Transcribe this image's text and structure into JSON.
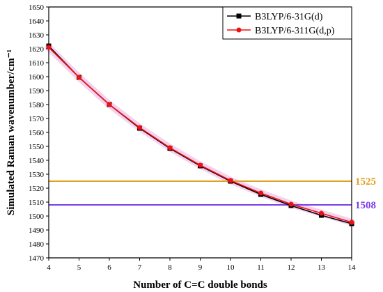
{
  "chart_data": {
    "type": "line",
    "xlabel": "Number of C=C double bonds",
    "ylabel": "Simulated Raman wavenumber/cm⁻¹",
    "xlim": [
      4,
      14
    ],
    "ylim": [
      1470,
      1650
    ],
    "x_ticks": [
      "4",
      "5",
      "6",
      "7",
      "8",
      "9",
      "10",
      "11",
      "12",
      "13",
      "14"
    ],
    "y_ticks": [
      "1470",
      "1480",
      "1490",
      "1500",
      "1510",
      "1520",
      "1530",
      "1540",
      "1550",
      "1560",
      "1570",
      "1580",
      "1590",
      "1600",
      "1610",
      "1620",
      "1630",
      "1640",
      "1650"
    ],
    "x": [
      4,
      5,
      6,
      7,
      8,
      9,
      10,
      11,
      12,
      13,
      14
    ],
    "series": [
      {
        "name": "B3LYP/6-31G(d)",
        "color": "#000000",
        "marker": "square",
        "values": [
          1622,
          1599.5,
          1580,
          1563,
          1548.5,
          1536,
          1525,
          1515.5,
          1507.5,
          1500.5,
          1494.5
        ]
      },
      {
        "name": "B3LYP/6-311G(d,p)",
        "color": "#ee1111",
        "marker": "circle",
        "values": [
          1621,
          1599.5,
          1580,
          1563.5,
          1549,
          1536.5,
          1525.5,
          1516.5,
          1508.5,
          1502,
          1495.5
        ]
      }
    ],
    "reference_lines": [
      {
        "value": 1525,
        "label": "1525",
        "color": "#e0a020"
      },
      {
        "value": 1508,
        "label": "1508",
        "color": "#7a3ce8"
      }
    ],
    "legend_position": "top-right",
    "grid": false
  }
}
